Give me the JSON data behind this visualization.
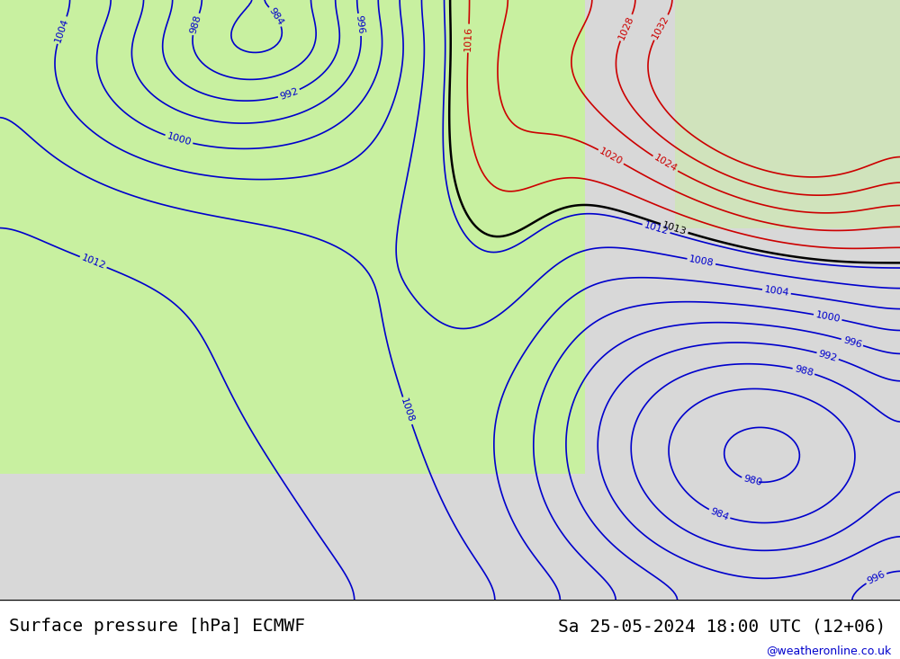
{
  "title_left": "Surface pressure [hPa] ECMWF",
  "title_right": "Sa 25-05-2024 18:00 UTC (12+06)",
  "watermark": "@weatheronline.co.uk",
  "background_land_color": "#c8f0a0",
  "background_sea_color": "#d8d8d8",
  "background_color": "#e8e8e8",
  "isobar_color_low": "#0000cc",
  "isobar_color_1013": "#000000",
  "isobar_color_high": "#cc0000",
  "bottom_bar_color": "#ffffff",
  "bottom_bar_height": 0.09,
  "title_fontsize": 14,
  "watermark_fontsize": 9,
  "label_fontsize": 9,
  "figsize": [
    10.0,
    7.33
  ],
  "dpi": 100
}
